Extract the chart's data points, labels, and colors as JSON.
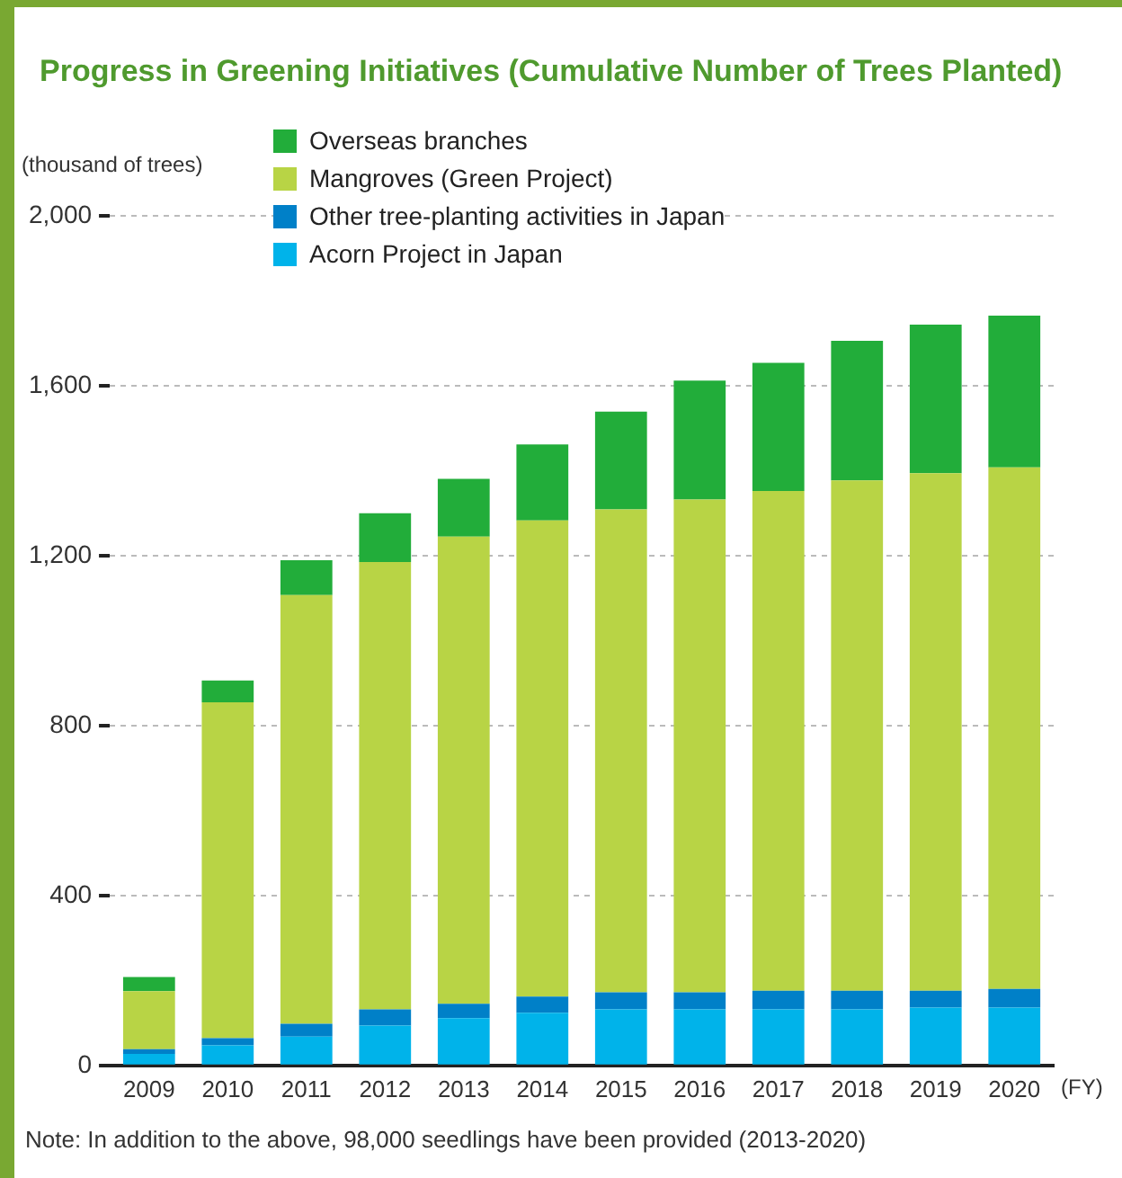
{
  "chart_data": {
    "type": "bar",
    "title": "Progress in Greening Initiatives (Cumulative Number of Trees Planted)",
    "ylabel": "(thousand of trees)",
    "xlabel": "(FY)",
    "categories": [
      "2009",
      "2010",
      "2011",
      "2012",
      "2013",
      "2014",
      "2015",
      "2016",
      "2017",
      "2018",
      "2019",
      "2020"
    ],
    "series": [
      {
        "name": "Acorn Project in Japan",
        "color": "#00b3ea",
        "values": [
          27,
          47,
          68,
          94,
          111,
          124,
          132,
          132,
          132,
          132,
          136,
          136
        ]
      },
      {
        "name": "Other tree-planting activities in Japan",
        "color": "#0080c8",
        "values": [
          11,
          17,
          30,
          38,
          34,
          38,
          40,
          40,
          44,
          44,
          40,
          44
        ]
      },
      {
        "name": "Mangroves (Green Project)",
        "color": "#b8d445",
        "values": [
          137,
          791,
          1009,
          1053,
          1100,
          1121,
          1137,
          1160,
          1176,
          1201,
          1218,
          1228
        ]
      },
      {
        "name": "Overseas branches",
        "color": "#22ad3a",
        "values": [
          33,
          51,
          82,
          115,
          136,
          179,
          230,
          280,
          302,
          329,
          350,
          357
        ]
      }
    ],
    "stacked": true,
    "ylim": [
      0,
      2000
    ],
    "yticks": [
      {
        "value": 0,
        "label": "0"
      },
      {
        "value": 400,
        "label": "400"
      },
      {
        "value": 800,
        "label": "800"
      },
      {
        "value": 1200,
        "label": "1,200"
      },
      {
        "value": 1600,
        "label": "1,600"
      },
      {
        "value": 2000,
        "label": "2,000"
      }
    ],
    "grid": "y",
    "legend": "top left",
    "annotations": [
      "Note: In addition to the above, 98,000 seedlings have been provided (2013-2020)"
    ]
  }
}
